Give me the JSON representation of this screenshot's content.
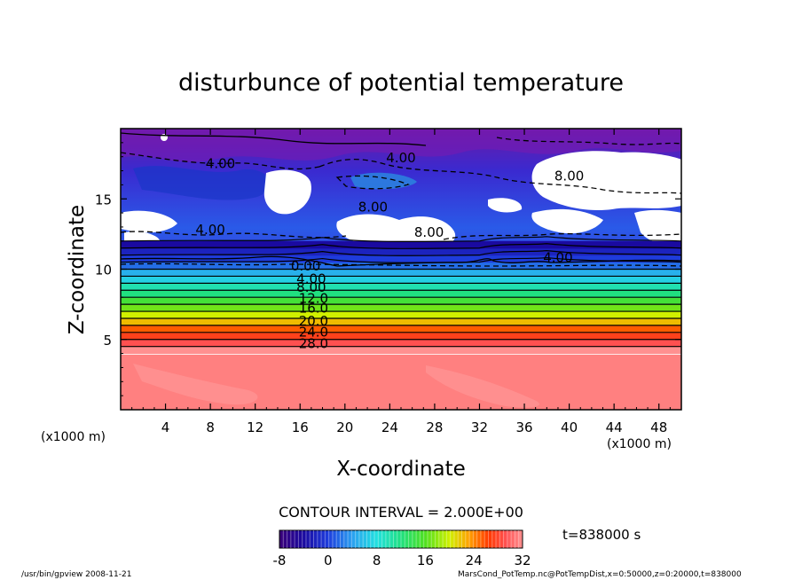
{
  "chart_data": {
    "type": "heatmap",
    "title": "disturbunce of potential temperature",
    "xlabel": "X-coordinate",
    "ylabel": "Z-coordinate",
    "x_unit_left": "(x1000 m)",
    "x_unit_right": "(x1000 m)",
    "xlim": [
      0,
      50
    ],
    "ylim": [
      0,
      20
    ],
    "x_ticks": [
      4,
      8,
      12,
      16,
      20,
      24,
      28,
      32,
      36,
      40,
      44,
      48
    ],
    "y_ticks": [
      5,
      10,
      15
    ],
    "contour_interval_text": "CONTOUR INTERVAL = 2.000E+00",
    "time_text": "t=838000 s",
    "colorbar": {
      "min": -8,
      "max": 32,
      "ticks": [
        -8,
        0,
        8,
        16,
        24,
        32
      ]
    },
    "contour_labels": [
      {
        "text": "4.00",
        "x": 8.9,
        "z": 17.2
      },
      {
        "text": "4.00",
        "x": 25.0,
        "z": 17.6
      },
      {
        "text": "8.00",
        "x": 40.0,
        "z": 16.3
      },
      {
        "text": "8.00",
        "x": 22.5,
        "z": 14.1
      },
      {
        "text": "8.00",
        "x": 27.5,
        "z": 12.3
      },
      {
        "text": "4.00",
        "x": 8.0,
        "z": 12.5
      },
      {
        "text": "4.00",
        "x": 39.0,
        "z": 10.5
      },
      {
        "text": "0.00",
        "x": 16.5,
        "z": 9.9
      },
      {
        "text": "4.00",
        "x": 17.0,
        "z": 9.0
      },
      {
        "text": "8.00",
        "x": 17.0,
        "z": 8.4
      },
      {
        "text": "12.0",
        "x": 17.2,
        "z": 7.6
      },
      {
        "text": "16.0",
        "x": 17.2,
        "z": 6.9
      },
      {
        "text": "20.0",
        "x": 17.2,
        "z": 6.0
      },
      {
        "text": "24.0",
        "x": 17.2,
        "z": 5.2
      },
      {
        "text": "28.0",
        "x": 17.2,
        "z": 4.4
      }
    ],
    "stable_layer": [
      {
        "z": 4.0,
        "value": 32
      },
      {
        "z": 4.5,
        "value": 29
      },
      {
        "z": 5.0,
        "value": 27
      },
      {
        "z": 5.5,
        "value": 25
      },
      {
        "z": 6.0,
        "value": 22
      },
      {
        "z": 6.5,
        "value": 20
      },
      {
        "z": 7.0,
        "value": 17
      },
      {
        "z": 7.5,
        "value": 15
      },
      {
        "z": 8.0,
        "value": 12
      },
      {
        "z": 8.5,
        "value": 10
      },
      {
        "z": 9.0,
        "value": 7
      },
      {
        "z": 9.5,
        "value": 5
      },
      {
        "z": 10.0,
        "value": 2
      },
      {
        "z": 10.5,
        "value": 0
      },
      {
        "z": 11.0,
        "value": -2
      },
      {
        "z": 11.5,
        "value": -4
      }
    ]
  },
  "footer": {
    "left": "/usr/bin/gpview   2008-11-21",
    "right": "MarsCond_PotTemp.nc@PotTempDist,x=0:50000,z=0:20000,t=838000"
  }
}
